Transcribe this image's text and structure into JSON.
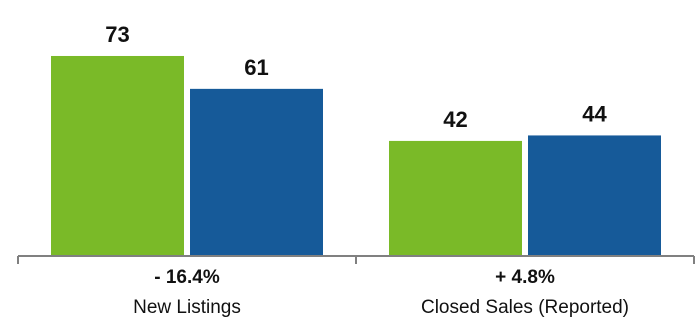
{
  "chart_data": {
    "type": "bar",
    "categories": [
      "New Listings",
      "Closed Sales (Reported)"
    ],
    "category_changes": [
      "- 16.4%",
      "+ 4.8%"
    ],
    "series": [
      {
        "values": [
          73,
          42
        ],
        "color": "#7aba28"
      },
      {
        "values": [
          61,
          44
        ],
        "color": "#165a99"
      }
    ],
    "ylim": [
      0,
      80
    ],
    "grid": false,
    "axis_color": "#808080"
  }
}
